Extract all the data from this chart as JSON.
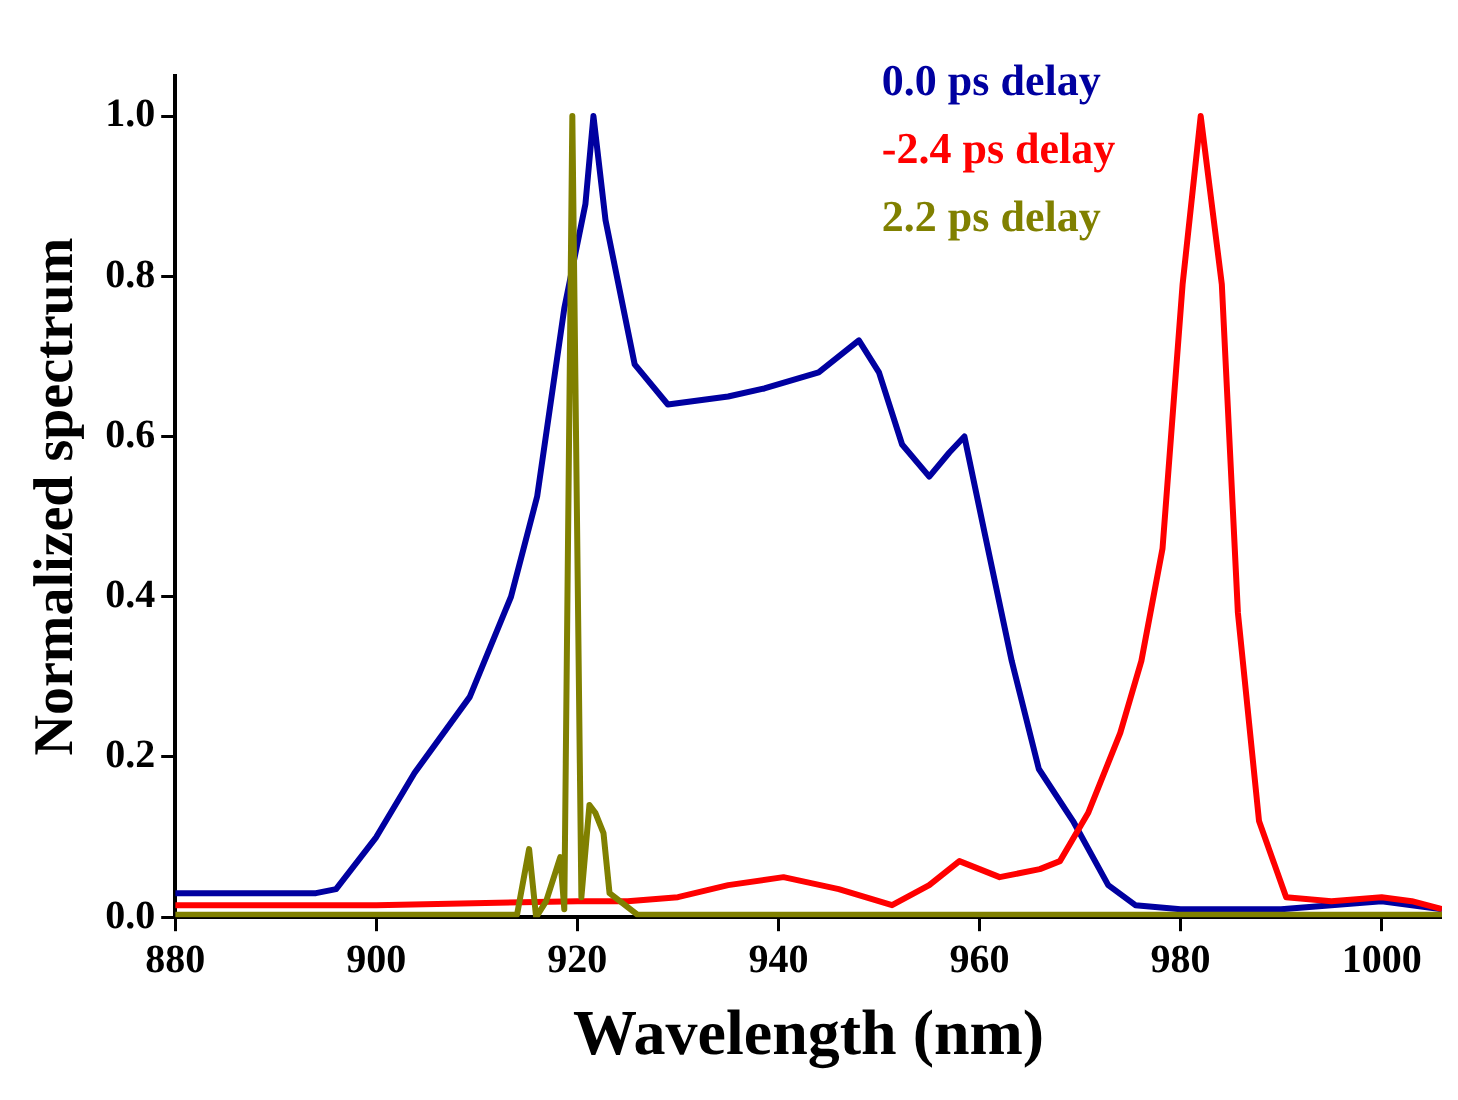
{
  "chart_data": {
    "type": "line",
    "xlabel": "Wavelength (nm)",
    "ylabel": "Normalized spectrum",
    "xlim": [
      880,
      1006
    ],
    "xticks": [
      880,
      900,
      920,
      940,
      960,
      980,
      1000
    ],
    "ylim": [
      0,
      1.05
    ],
    "yticks": [
      {
        "value": 0,
        "label": "0.0"
      },
      {
        "value": 0.2,
        "label": "0.2"
      },
      {
        "value": 0.4,
        "label": "0.4"
      },
      {
        "value": 0.6,
        "label": "0.6"
      },
      {
        "value": 0.8,
        "label": "0.8"
      },
      {
        "value": 1,
        "label": "1.0"
      }
    ],
    "grid": false,
    "legend": "top",
    "marker": "none",
    "line_style": "solid",
    "series": [
      {
        "name": "0.0 ps delay",
        "color": "#0000a0",
        "x": [
          880,
          885,
          890,
          894,
          896,
          900,
          903.8,
          909.3,
          913.4,
          916,
          918.7,
          920.8,
          921.6,
          922.8,
          925.7,
          929,
          935,
          938.6,
          944,
          948,
          950,
          952.3,
          955,
          957,
          958.5,
          960.5,
          963.2,
          965.9,
          969.3,
          972.8,
          975.5,
          980,
          990,
          1000,
          1006
        ],
        "values": [
          0.03,
          0.03,
          0.03,
          0.03,
          0.035,
          0.1,
          0.18,
          0.275,
          0.4,
          0.525,
          0.76,
          0.89,
          1.0,
          0.87,
          0.69,
          0.64,
          0.65,
          0.66,
          0.68,
          0.72,
          0.68,
          0.59,
          0.55,
          0.58,
          0.6,
          0.48,
          0.32,
          0.185,
          0.12,
          0.04,
          0.015,
          0.01,
          0.01,
          0.02,
          0.01
        ]
      },
      {
        "name": "-2.4 ps delay",
        "color": "#ff0000",
        "x": [
          880,
          900,
          920,
          925,
          930,
          935,
          940.5,
          946,
          951.3,
          955,
          958,
          960,
          962,
          966,
          968,
          970.8,
          974,
          976.1,
          978.2,
          980.2,
          982,
          984.1,
          985.7,
          987.8,
          990.5,
          995,
          1000,
          1003,
          1006
        ],
        "values": [
          0.015,
          0.015,
          0.02,
          0.02,
          0.025,
          0.04,
          0.05,
          0.035,
          0.015,
          0.04,
          0.07,
          0.06,
          0.05,
          0.06,
          0.07,
          0.13,
          0.23,
          0.32,
          0.46,
          0.79,
          1.0,
          0.79,
          0.38,
          0.12,
          0.025,
          0.02,
          0.025,
          0.02,
          0.01
        ]
      },
      {
        "name": "2.2 ps delay",
        "color": "#808000",
        "x": [
          880,
          914,
          915.2,
          915.9,
          916.9,
          918.3,
          918.7,
          919.5,
          920.4,
          921.2,
          921.8,
          922.6,
          923.2,
          926,
          1006
        ],
        "values": [
          0.003,
          0.003,
          0.085,
          0.0,
          0.02,
          0.075,
          0.01,
          1.0,
          0.025,
          0.14,
          0.13,
          0.105,
          0.03,
          0.003,
          0.003
        ]
      }
    ]
  }
}
